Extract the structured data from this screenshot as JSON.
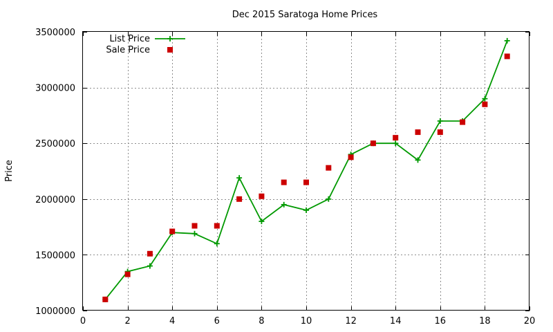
{
  "chart_data": {
    "type": "line",
    "title": "Dec 2015 Saratoga Home Prices",
    "xlabel": "",
    "ylabel": "Price",
    "xlim": [
      0,
      20
    ],
    "ylim": [
      1000000,
      3500000
    ],
    "x_ticks": [
      0,
      2,
      4,
      6,
      8,
      10,
      12,
      14,
      16,
      18,
      20
    ],
    "y_ticks": [
      1000000,
      1500000,
      2000000,
      2500000,
      3000000,
      3500000
    ],
    "grid": true,
    "legend_position": "top-left",
    "x": [
      1,
      2,
      3,
      4,
      5,
      6,
      7,
      8,
      9,
      10,
      11,
      12,
      13,
      14,
      15,
      16,
      17,
      18,
      19
    ],
    "series": [
      {
        "name": "List Price",
        "style": "line-with-plus-markers",
        "color": "#009900",
        "values": [
          1100000,
          1350000,
          1400000,
          1700000,
          1690000,
          1600000,
          2190000,
          1800000,
          1950000,
          1900000,
          2000000,
          2400000,
          2500000,
          2500000,
          2350000,
          2700000,
          2700000,
          2900000,
          3420000
        ]
      },
      {
        "name": "Sale Price",
        "style": "square-markers",
        "color": "#cc0000",
        "values": [
          1100000,
          1325000,
          1510000,
          1710000,
          1760000,
          1760000,
          2000000,
          2025000,
          2150000,
          2150000,
          2280000,
          2375000,
          2500000,
          2550000,
          2600000,
          2600000,
          2690000,
          2850000,
          3280000
        ]
      }
    ]
  }
}
